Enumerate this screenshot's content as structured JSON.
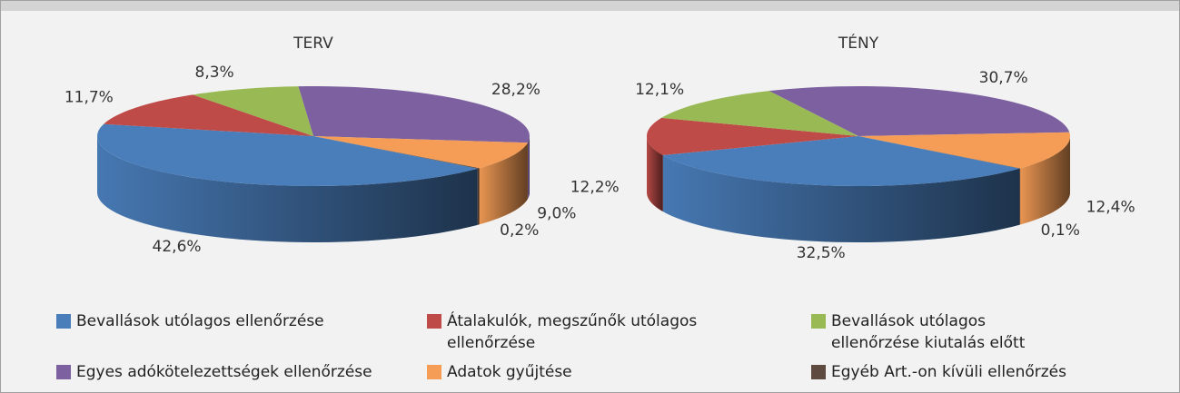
{
  "chart_data": {
    "type": "pie3d",
    "categories": [
      "Bevallások utólagos ellenőrzése",
      "Átalakulók, megszűnők utólagos ellenőrzése",
      "Bevallások utólagos ellenőrzése kiutalás előtt",
      "Egyes adókötelezettségek ellenőrzése",
      "Adatok gyűjtése",
      "Egyéb Art.-on kívüli ellenőrzés"
    ],
    "colors": [
      "#4a7ebb",
      "#be4b48",
      "#98b954",
      "#7d60a0",
      "#f59d56",
      "#5e4a3f"
    ],
    "series": [
      {
        "name": "TERV",
        "values": [
          42.6,
          11.7,
          8.3,
          28.2,
          9.0,
          0.2
        ],
        "value_labels": [
          "42,6%",
          "11,7%",
          "8,3%",
          "28,2%",
          "9,0%",
          "0,2%"
        ]
      },
      {
        "name": "TÉNY",
        "values": [
          32.5,
          12.2,
          12.1,
          30.7,
          12.4,
          0.1
        ],
        "value_labels": [
          "32,5%",
          "12,2%",
          "12,1%",
          "30,7%",
          "12,4%",
          "0,1%"
        ]
      }
    ],
    "legend": "bottom"
  }
}
